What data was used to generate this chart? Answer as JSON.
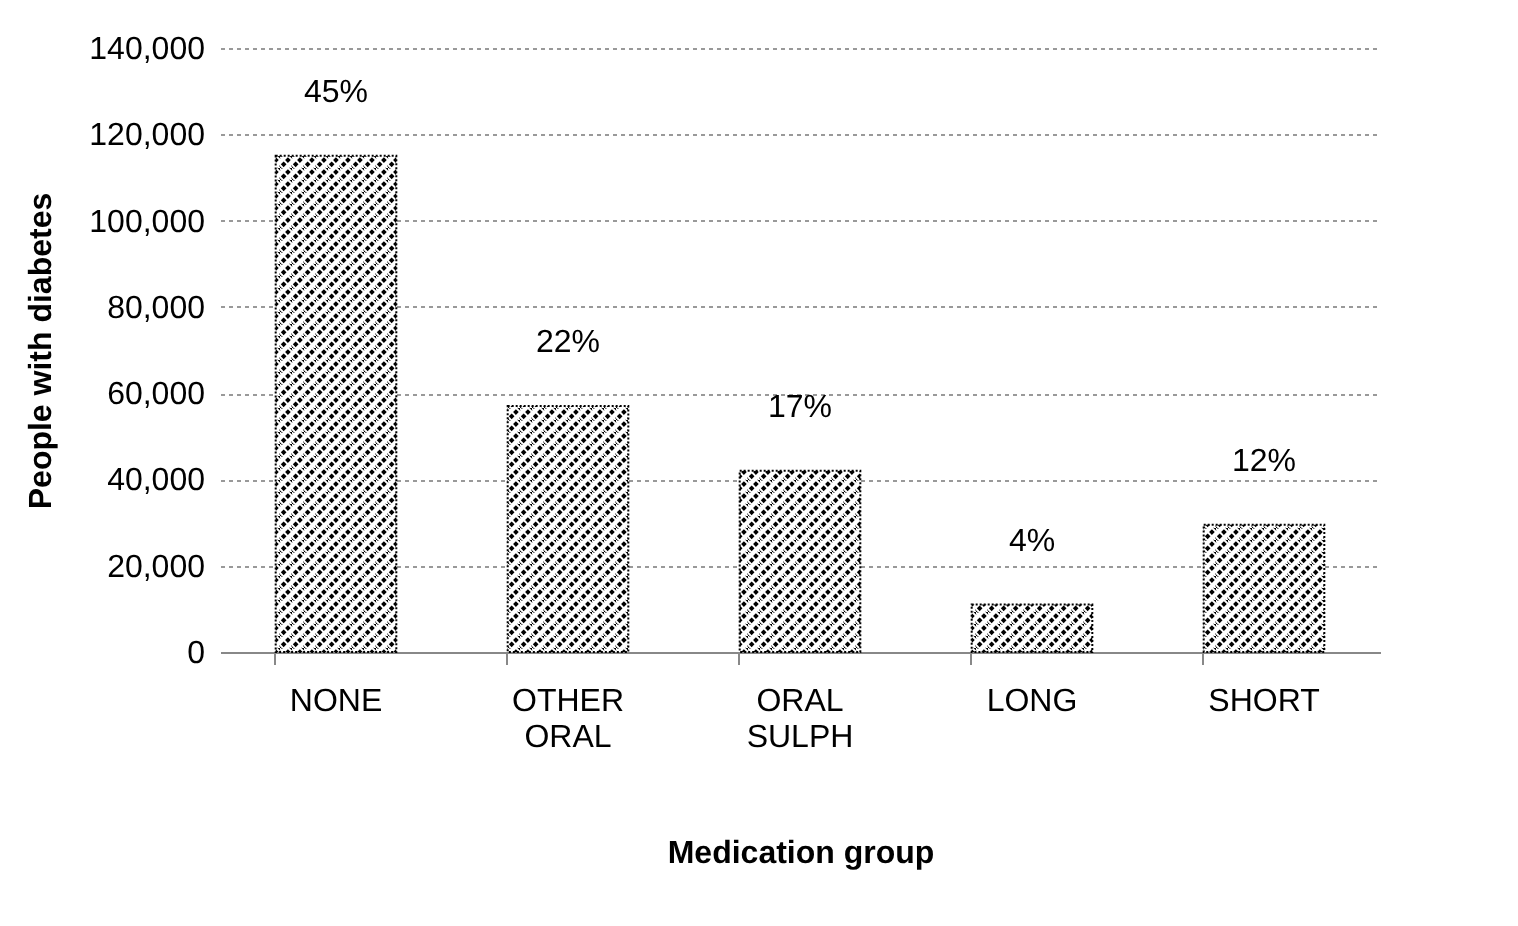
{
  "chart_data": {
    "type": "bar",
    "xlabel": "Medication group",
    "ylabel": "People with diabetes",
    "categories": [
      "NONE",
      "OTHER ORAL",
      "ORAL SULPH",
      "LONG",
      "SHORT"
    ],
    "values": [
      115000,
      57000,
      42000,
      11000,
      29500
    ],
    "annotations": [
      "45%",
      "22%",
      "17%",
      "4%",
      "12%"
    ],
    "color": "#000000",
    "ylim": [
      0,
      140000
    ],
    "yticks": [
      0,
      {
        "value": 20000,
        "label": "20,000"
      },
      {
        "value": 40000,
        "label": "40,000"
      },
      {
        "value": 60000,
        "label": "60,000"
      },
      {
        "value": 80000,
        "label": "80,000"
      },
      {
        "value": 100000,
        "label": "100,000"
      },
      {
        "value": 120000,
        "label": "120,000"
      },
      {
        "value": 140000,
        "label": "140,000"
      }
    ],
    "grid": "y"
  }
}
